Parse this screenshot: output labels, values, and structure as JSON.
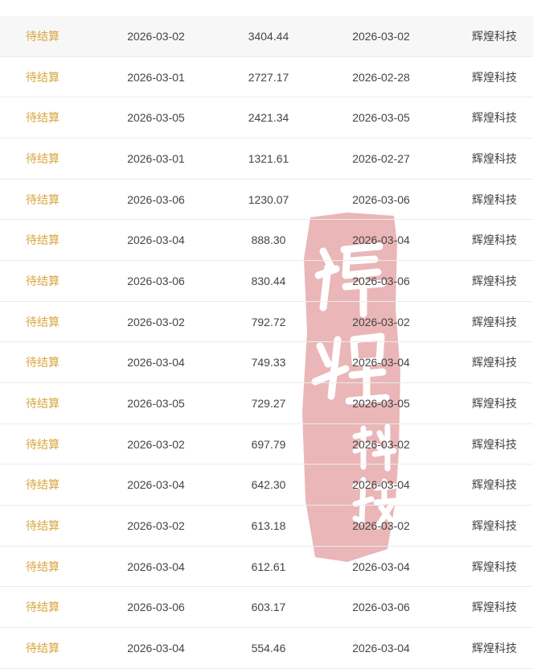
{
  "rows": [
    {
      "status": "待结算",
      "date": "2026-03-02",
      "amount": "3404.44",
      "settle_date": "2026-03-02",
      "company": "辉煌科技"
    },
    {
      "status": "待结算",
      "date": "2026-03-01",
      "amount": "2727.17",
      "settle_date": "2026-02-28",
      "company": "辉煌科技"
    },
    {
      "status": "待结算",
      "date": "2026-03-05",
      "amount": "2421.34",
      "settle_date": "2026-03-05",
      "company": "辉煌科技"
    },
    {
      "status": "待结算",
      "date": "2026-03-01",
      "amount": "1321.61",
      "settle_date": "2026-02-27",
      "company": "辉煌科技"
    },
    {
      "status": "待结算",
      "date": "2026-03-06",
      "amount": "1230.07",
      "settle_date": "2026-03-06",
      "company": "辉煌科技"
    },
    {
      "status": "待结算",
      "date": "2026-03-04",
      "amount": "888.30",
      "settle_date": "2026-03-04",
      "company": "辉煌科技"
    },
    {
      "status": "待结算",
      "date": "2026-03-06",
      "amount": "830.44",
      "settle_date": "2026-03-06",
      "company": "辉煌科技"
    },
    {
      "status": "待结算",
      "date": "2026-03-02",
      "amount": "792.72",
      "settle_date": "2026-03-02",
      "company": "辉煌科技"
    },
    {
      "status": "待结算",
      "date": "2026-03-04",
      "amount": "749.33",
      "settle_date": "2026-03-04",
      "company": "辉煌科技"
    },
    {
      "status": "待结算",
      "date": "2026-03-05",
      "amount": "729.27",
      "settle_date": "2026-03-05",
      "company": "辉煌科技"
    },
    {
      "status": "待结算",
      "date": "2026-03-02",
      "amount": "697.79",
      "settle_date": "2026-03-02",
      "company": "辉煌科技"
    },
    {
      "status": "待结算",
      "date": "2026-03-04",
      "amount": "642.30",
      "settle_date": "2026-03-04",
      "company": "辉煌科技"
    },
    {
      "status": "待结算",
      "date": "2026-03-02",
      "amount": "613.18",
      "settle_date": "2026-03-02",
      "company": "辉煌科技"
    },
    {
      "status": "待结算",
      "date": "2026-03-04",
      "amount": "612.61",
      "settle_date": "2026-03-04",
      "company": "辉煌科技"
    },
    {
      "status": "待结算",
      "date": "2026-03-06",
      "amount": "603.17",
      "settle_date": "2026-03-06",
      "company": "辉煌科技"
    },
    {
      "status": "待结算",
      "date": "2026-03-04",
      "amount": "554.46",
      "settle_date": "2026-03-04",
      "company": "辉煌科技"
    }
  ],
  "seal": {
    "text": [
      "辉",
      "煌",
      "科",
      "技"
    ],
    "color": "#e6a9aa"
  },
  "colors": {
    "status": "#d9a53a",
    "highlight_row": "#f7f7f7"
  }
}
